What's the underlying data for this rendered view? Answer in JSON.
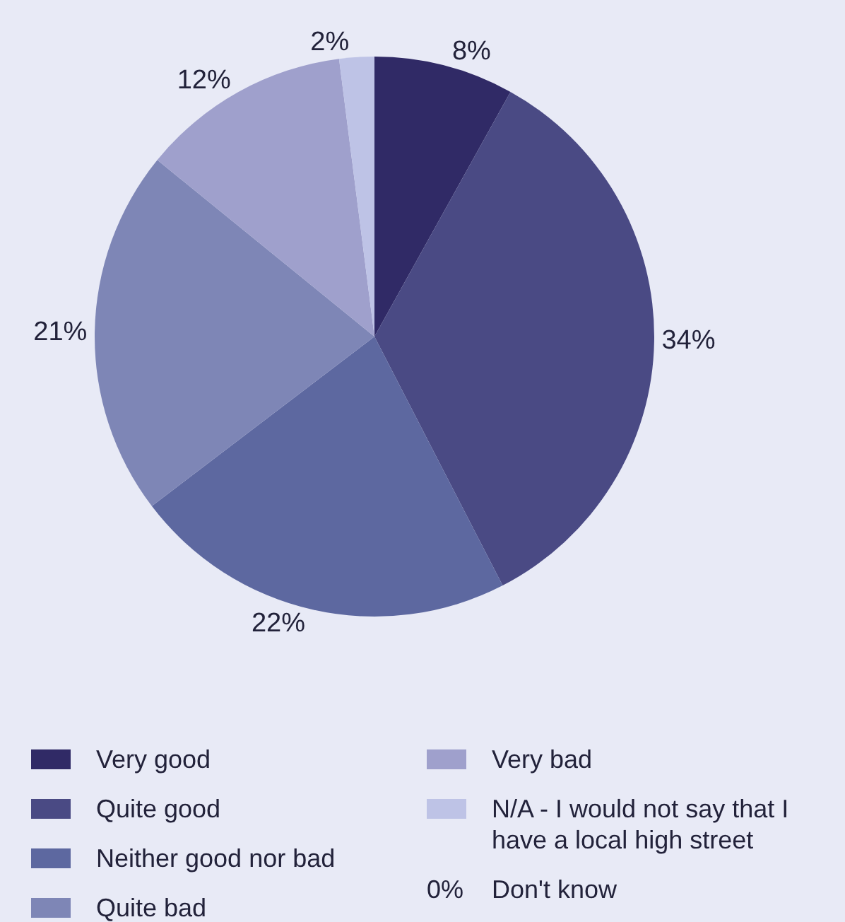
{
  "chart_data": {
    "type": "pie",
    "categories": [
      "Very good",
      "Quite good",
      "Neither good nor bad",
      "Quite bad",
      "Very bad",
      "N/A - I would not say that I have a local high street",
      "Don't know"
    ],
    "values": [
      8,
      34,
      22,
      21,
      12,
      2,
      0
    ],
    "value_labels": [
      "8%",
      "34%",
      "22%",
      "21%",
      "12%",
      "2%",
      "0%"
    ],
    "colors": [
      "#302a66",
      "#4a4a84",
      "#5d68a0",
      "#7e86b6",
      "#9fa0cc",
      "#bec3e6",
      "#e8eaf6"
    ],
    "legend": "bottom"
  }
}
